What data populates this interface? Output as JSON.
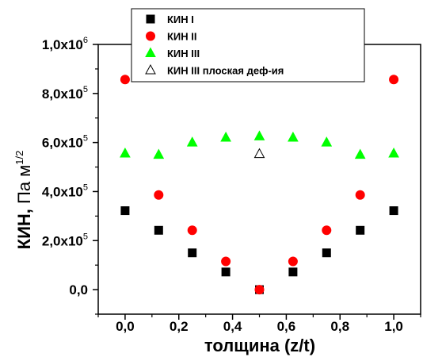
{
  "chart_data": {
    "type": "scatter",
    "xlabel": "толщина (z/t)",
    "ylabel": {
      "main": "КИН,",
      "unit": " Па м",
      "exponent": "1/2"
    },
    "xlim": [
      -0.1,
      1.1
    ],
    "ylim": [
      -100000,
      1000000
    ],
    "x_ticks": [
      {
        "value": 0.0,
        "label": "0,0"
      },
      {
        "value": 0.2,
        "label": "0,2"
      },
      {
        "value": 0.4,
        "label": "0,4"
      },
      {
        "value": 0.6,
        "label": "0,6"
      },
      {
        "value": 0.8,
        "label": "0,8"
      },
      {
        "value": 1.0,
        "label": "1,0"
      }
    ],
    "y_ticks": [
      {
        "value": 0,
        "mantissa": "0,0",
        "exp": ""
      },
      {
        "value": 200000,
        "mantissa": "2,0x10",
        "exp": "5"
      },
      {
        "value": 400000,
        "mantissa": "4,0x10",
        "exp": "5"
      },
      {
        "value": 600000,
        "mantissa": "6,0x10",
        "exp": "5"
      },
      {
        "value": 800000,
        "mantissa": "8,0x10",
        "exp": "5"
      },
      {
        "value": 1000000,
        "mantissa": "1,0x10",
        "exp": "6"
      }
    ],
    "grid": false,
    "legend_position": "top-center",
    "series": [
      {
        "name": "КИН I",
        "marker": "square",
        "color": "#000000",
        "filled": true,
        "x": [
          0,
          0.125,
          0.25,
          0.375,
          0.5,
          0.625,
          0.75,
          0.875,
          1.0
        ],
        "y": [
          322000,
          242000,
          150000,
          72000,
          0,
          72000,
          150000,
          242000,
          322000
        ]
      },
      {
        "name": "КИН II",
        "marker": "circle",
        "color": "#ff0000",
        "filled": true,
        "x": [
          0,
          0.125,
          0.25,
          0.375,
          0.5,
          0.625,
          0.75,
          0.875,
          1.0
        ],
        "y": [
          857000,
          386000,
          242000,
          115000,
          0,
          115000,
          242000,
          386000,
          857000
        ]
      },
      {
        "name": "КИН III",
        "marker": "triangle",
        "color": "#00ff00",
        "filled": true,
        "x": [
          0,
          0.125,
          0.25,
          0.375,
          0.5,
          0.625,
          0.75,
          0.875,
          1.0
        ],
        "y": [
          555000,
          550000,
          600000,
          620000,
          625000,
          620000,
          600000,
          550000,
          555000
        ]
      },
      {
        "name": "КИН III плоская деф-ия",
        "marker": "triangle",
        "color": "#000000",
        "filled": false,
        "x": [
          0.5
        ],
        "y": [
          553000
        ]
      }
    ]
  }
}
